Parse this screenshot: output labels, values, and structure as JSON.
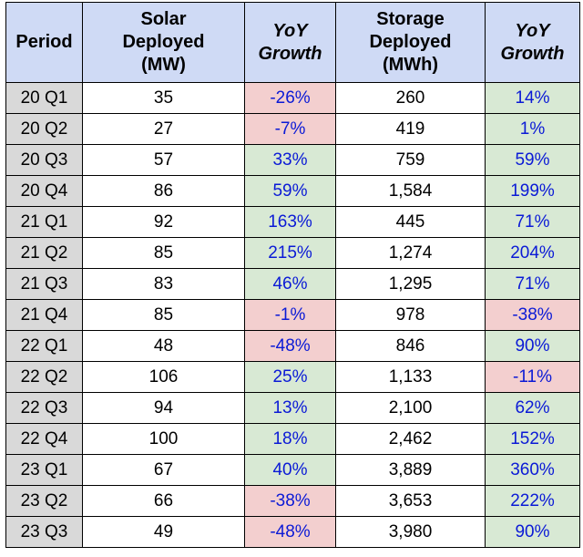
{
  "chart_data": {
    "type": "table",
    "columns": [
      {
        "key": "period",
        "label": "Period"
      },
      {
        "key": "solar",
        "label": "Solar Deployed (MW)",
        "lines": [
          "Solar",
          "Deployed",
          "(MW)"
        ]
      },
      {
        "key": "solar_yoy",
        "label": "YoY Growth",
        "lines": [
          "YoY",
          "Growth"
        ]
      },
      {
        "key": "storage",
        "label": "Storage Deployed (MWh)",
        "lines": [
          "Storage",
          "Deployed",
          "(MWh)"
        ]
      },
      {
        "key": "storage_yoy",
        "label": "YoY Growth",
        "lines": [
          "YoY",
          "Growth"
        ]
      }
    ],
    "rows": [
      {
        "period": "20 Q1",
        "solar": "35",
        "solar_yoy": "-26%",
        "storage": "260",
        "storage_yoy": "14%"
      },
      {
        "period": "20 Q2",
        "solar": "27",
        "solar_yoy": "-7%",
        "storage": "419",
        "storage_yoy": "1%"
      },
      {
        "period": "20 Q3",
        "solar": "57",
        "solar_yoy": "33%",
        "storage": "759",
        "storage_yoy": "59%"
      },
      {
        "period": "20 Q4",
        "solar": "86",
        "solar_yoy": "59%",
        "storage": "1,584",
        "storage_yoy": "199%"
      },
      {
        "period": "21 Q1",
        "solar": "92",
        "solar_yoy": "163%",
        "storage": "445",
        "storage_yoy": "71%"
      },
      {
        "period": "21 Q2",
        "solar": "85",
        "solar_yoy": "215%",
        "storage": "1,274",
        "storage_yoy": "204%"
      },
      {
        "period": "21 Q3",
        "solar": "83",
        "solar_yoy": "46%",
        "storage": "1,295",
        "storage_yoy": "71%"
      },
      {
        "period": "21 Q4",
        "solar": "85",
        "solar_yoy": "-1%",
        "storage": "978",
        "storage_yoy": "-38%"
      },
      {
        "period": "22 Q1",
        "solar": "48",
        "solar_yoy": "-48%",
        "storage": "846",
        "storage_yoy": "90%"
      },
      {
        "period": "22 Q2",
        "solar": "106",
        "solar_yoy": "25%",
        "storage": "1,133",
        "storage_yoy": "-11%"
      },
      {
        "period": "22 Q3",
        "solar": "94",
        "solar_yoy": "13%",
        "storage": "2,100",
        "storage_yoy": "62%"
      },
      {
        "period": "22 Q4",
        "solar": "100",
        "solar_yoy": "18%",
        "storage": "2,462",
        "storage_yoy": "152%"
      },
      {
        "period": "23 Q1",
        "solar": "67",
        "solar_yoy": "40%",
        "storage": "3,889",
        "storage_yoy": "360%"
      },
      {
        "period": "23 Q2",
        "solar": "66",
        "solar_yoy": "-38%",
        "storage": "3,653",
        "storage_yoy": "222%"
      },
      {
        "period": "23 Q3",
        "solar": "49",
        "solar_yoy": "-48%",
        "storage": "3,980",
        "storage_yoy": "90%"
      }
    ]
  },
  "colors": {
    "header_bg": "#cfdaf5",
    "period_bg": "#d9d9d9",
    "positive_bg": "#d8e9d4",
    "negative_bg": "#f3cfcf",
    "growth_text": "#0b1ad6"
  }
}
